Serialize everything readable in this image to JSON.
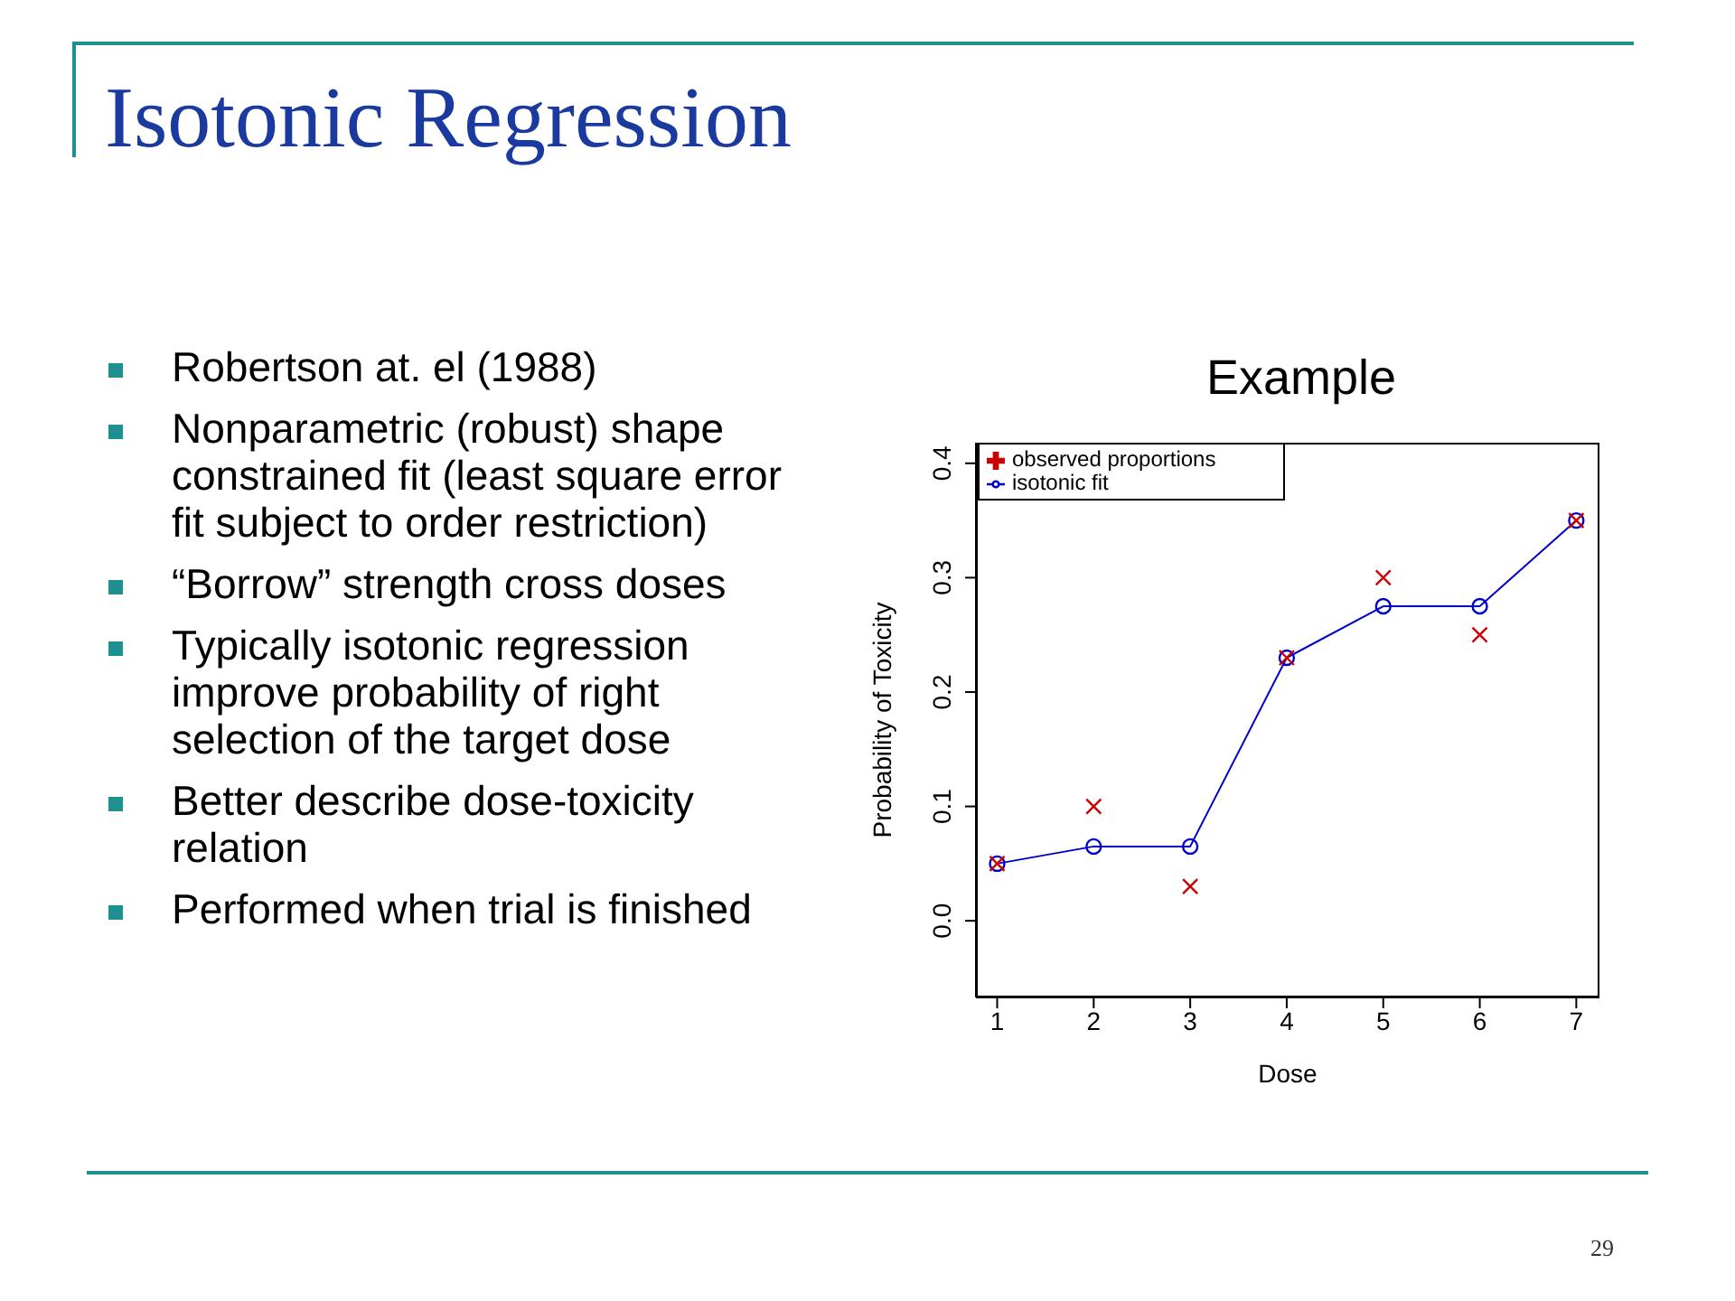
{
  "chart_data": {
    "type": "line",
    "title": "Example",
    "xlabel": "Dose",
    "ylabel": "Probability of Toxicity",
    "x": [
      1,
      2,
      3,
      4,
      5,
      6,
      7
    ],
    "series": [
      {
        "name": "observed proportions",
        "type": "scatter",
        "marker": "cross",
        "color": "#cc0000",
        "values": [
          0.05,
          0.1,
          0.03,
          0.23,
          0.3,
          0.25,
          0.35
        ]
      },
      {
        "name": "isotonic fit",
        "type": "line",
        "marker": "circle",
        "line_style": "solid",
        "color": "#0000cc",
        "values": [
          0.05,
          0.065,
          0.065,
          0.23,
          0.275,
          0.275,
          0.35
        ]
      }
    ],
    "xlim": [
      0.78,
      7.24
    ],
    "xticks": [
      1,
      2,
      3,
      4,
      5,
      6,
      7
    ],
    "ylim": [
      -0.067,
      0.418
    ],
    "yticks": [
      {
        "value": 0,
        "label": "0.0"
      },
      0.1,
      0.2,
      0.3,
      0.4
    ],
    "grid": false,
    "legend": "top left",
    "subtitle": "Isotonic Regression",
    "annotations": [
      "Robertson at. el (1988)",
      "Nonparametric (robust) shape constrained fit (least square error fit subject to order restriction)",
      "“Borrow” strength cross doses",
      "Typically isotonic regression improve probability of right selection of the target dose",
      "Better describe dose-toxicity relation",
      "Performed when trial is finished",
      "29"
    ]
  }
}
